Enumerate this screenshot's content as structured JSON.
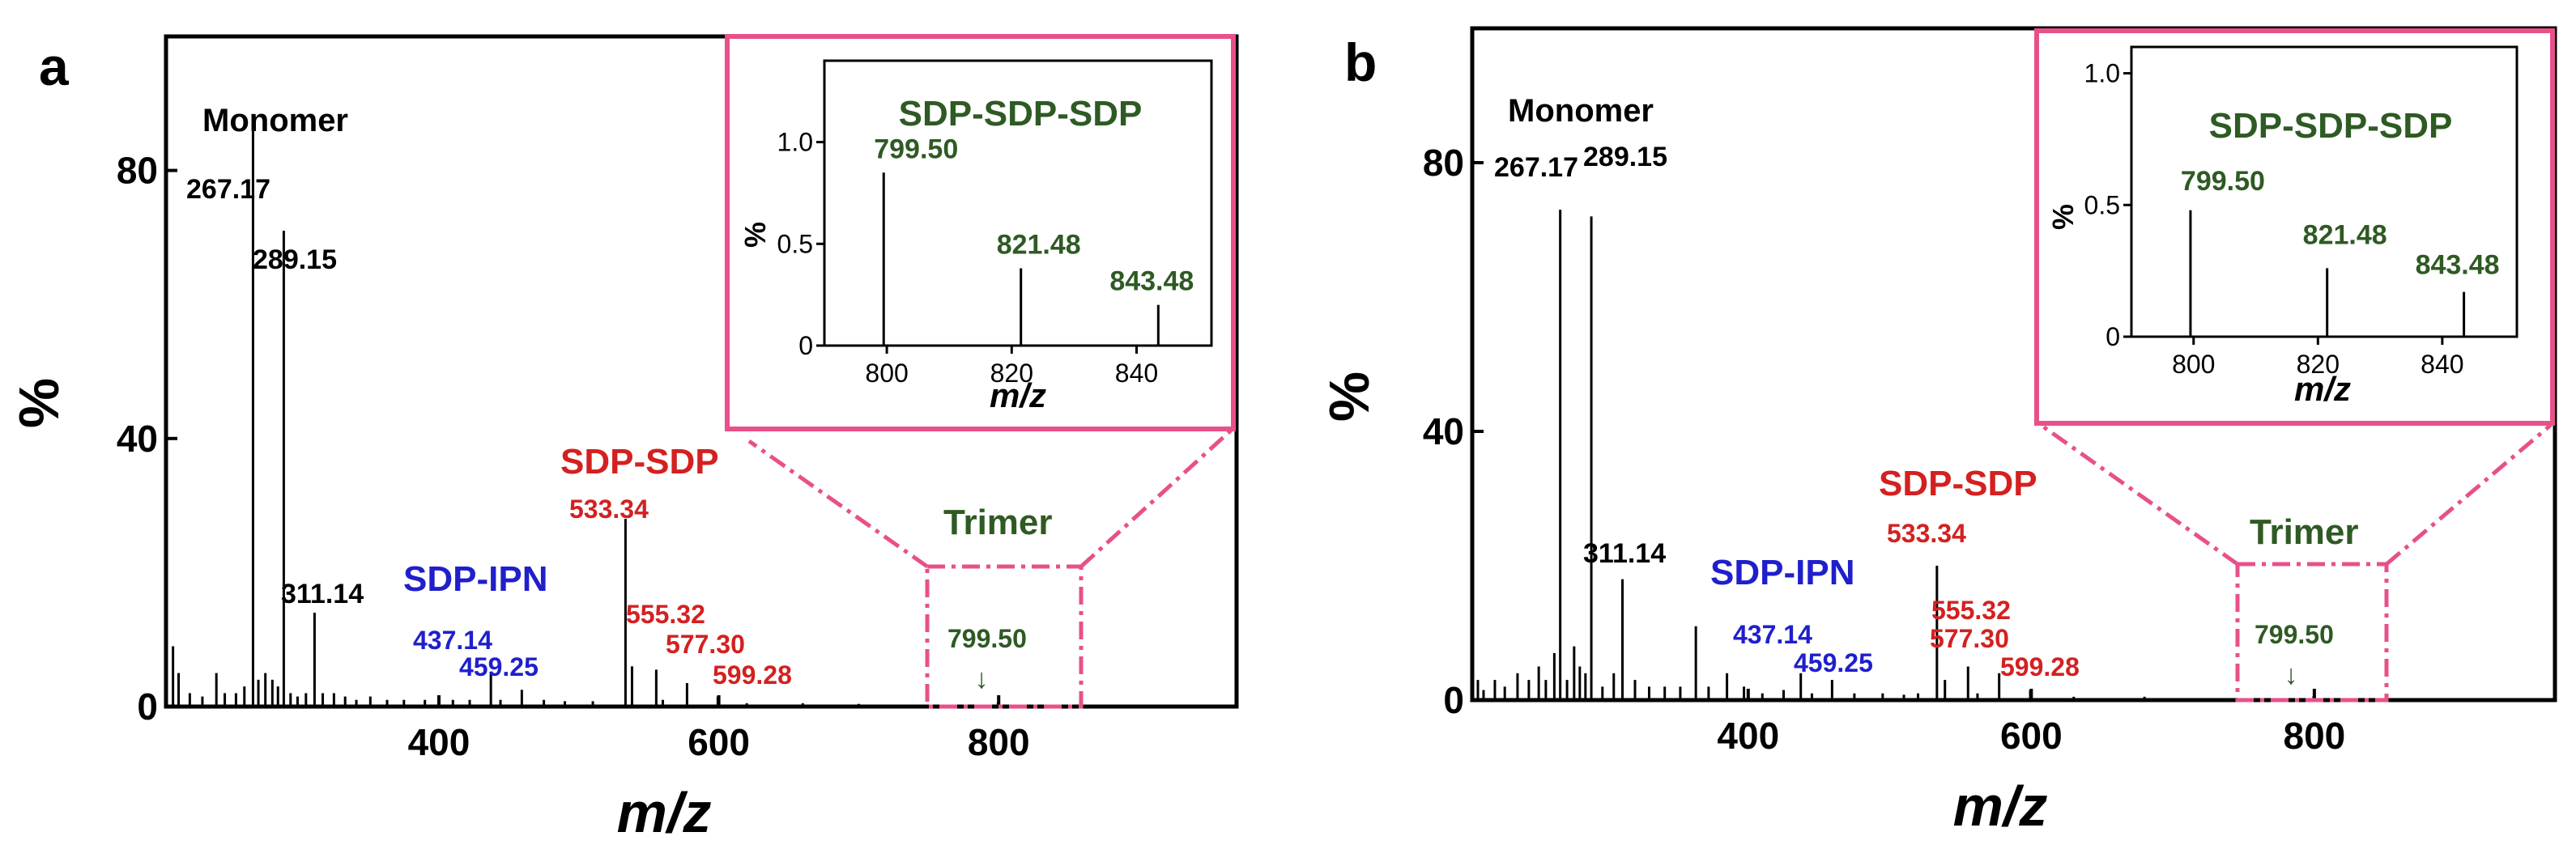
{
  "colors": {
    "black": "#000000",
    "blue": "#1f1fcc",
    "red": "#d42020",
    "green": "#2e5a23",
    "pink": "#e8508a"
  },
  "chart_data": [
    {
      "panel": "a",
      "type": "bar",
      "xlabel": "m/z",
      "ylabel": "%",
      "xlim": [
        205,
        970
      ],
      "ylim": [
        0,
        100
      ],
      "xticks": [
        400,
        600,
        800
      ],
      "yticks": [
        0,
        40,
        80
      ],
      "peaks": [
        {
          "x": 210,
          "y": 9
        },
        {
          "x": 214,
          "y": 5
        },
        {
          "x": 222,
          "y": 2
        },
        {
          "x": 231,
          "y": 1.5
        },
        {
          "x": 241,
          "y": 5
        },
        {
          "x": 247,
          "y": 2
        },
        {
          "x": 255,
          "y": 2
        },
        {
          "x": 261,
          "y": 3
        },
        {
          "x": 267.17,
          "y": 86
        },
        {
          "x": 271,
          "y": 4
        },
        {
          "x": 276,
          "y": 5
        },
        {
          "x": 281,
          "y": 4
        },
        {
          "x": 285,
          "y": 3
        },
        {
          "x": 289.15,
          "y": 71
        },
        {
          "x": 294,
          "y": 2
        },
        {
          "x": 299,
          "y": 1.5
        },
        {
          "x": 305,
          "y": 2
        },
        {
          "x": 311.14,
          "y": 14
        },
        {
          "x": 317,
          "y": 2
        },
        {
          "x": 325,
          "y": 2
        },
        {
          "x": 333,
          "y": 1.5
        },
        {
          "x": 341,
          "y": 1
        },
        {
          "x": 351,
          "y": 1.5
        },
        {
          "x": 363,
          "y": 1
        },
        {
          "x": 375,
          "y": 1
        },
        {
          "x": 390,
          "y": 1
        },
        {
          "x": 410,
          "y": 1
        },
        {
          "x": 422,
          "y": 1
        },
        {
          "x": 437.14,
          "y": 5
        },
        {
          "x": 444,
          "y": 1
        },
        {
          "x": 459.25,
          "y": 2.5
        },
        {
          "x": 475,
          "y": 1
        },
        {
          "x": 490,
          "y": 0.8
        },
        {
          "x": 510,
          "y": 0.8
        },
        {
          "x": 533.34,
          "y": 28
        },
        {
          "x": 538,
          "y": 6
        },
        {
          "x": 555.32,
          "y": 5.5
        },
        {
          "x": 560,
          "y": 1
        },
        {
          "x": 577.3,
          "y": 3.5
        },
        {
          "x": 599.28,
          "y": 1.5
        },
        {
          "x": 620,
          "y": 0.5
        },
        {
          "x": 660,
          "y": 0.5
        },
        {
          "x": 700,
          "y": 0.4
        },
        {
          "x": 799.5,
          "y": 0.6
        }
      ],
      "inset": {
        "title": "SDP-SDP-SDP",
        "xlabel": "m/z",
        "ylabel": "%",
        "xlim": [
          790,
          852
        ],
        "ylim": [
          0,
          1.4
        ],
        "xticks": [
          800,
          820,
          840
        ],
        "yticks": [
          "0",
          "0.5",
          "1.0"
        ],
        "peaks": [
          {
            "x": 799.5,
            "y": 0.85,
            "label": "799.50"
          },
          {
            "x": 821.48,
            "y": 0.38,
            "label": "821.48"
          },
          {
            "x": 843.48,
            "y": 0.2,
            "label": "843.48"
          }
        ]
      }
    },
    {
      "panel": "b",
      "type": "bar",
      "xlabel": "m/z",
      "ylabel": "%",
      "xlim": [
        205,
        970
      ],
      "ylim": [
        0,
        100
      ],
      "xticks": [
        400,
        600,
        800
      ],
      "yticks": [
        0,
        40,
        80
      ],
      "peaks": [
        {
          "x": 209,
          "y": 3
        },
        {
          "x": 213,
          "y": 1.5
        },
        {
          "x": 221,
          "y": 3
        },
        {
          "x": 228,
          "y": 2
        },
        {
          "x": 237,
          "y": 4
        },
        {
          "x": 245,
          "y": 3
        },
        {
          "x": 252,
          "y": 5
        },
        {
          "x": 257,
          "y": 3
        },
        {
          "x": 263,
          "y": 7
        },
        {
          "x": 267.17,
          "y": 73
        },
        {
          "x": 272,
          "y": 3
        },
        {
          "x": 277,
          "y": 8
        },
        {
          "x": 281,
          "y": 5
        },
        {
          "x": 285,
          "y": 4
        },
        {
          "x": 289.15,
          "y": 72
        },
        {
          "x": 297,
          "y": 2
        },
        {
          "x": 305,
          "y": 4
        },
        {
          "x": 311.14,
          "y": 18
        },
        {
          "x": 320,
          "y": 3
        },
        {
          "x": 330,
          "y": 2
        },
        {
          "x": 341,
          "y": 2
        },
        {
          "x": 352,
          "y": 2
        },
        {
          "x": 363,
          "y": 11
        },
        {
          "x": 372,
          "y": 2
        },
        {
          "x": 385,
          "y": 4
        },
        {
          "x": 397,
          "y": 2
        },
        {
          "x": 410,
          "y": 1
        },
        {
          "x": 425,
          "y": 1.5
        },
        {
          "x": 437.14,
          "y": 4
        },
        {
          "x": 445,
          "y": 1
        },
        {
          "x": 459.25,
          "y": 3
        },
        {
          "x": 475,
          "y": 1
        },
        {
          "x": 495,
          "y": 1
        },
        {
          "x": 510,
          "y": 0.8
        },
        {
          "x": 520,
          "y": 1
        },
        {
          "x": 533.34,
          "y": 20
        },
        {
          "x": 539,
          "y": 3
        },
        {
          "x": 555.32,
          "y": 5
        },
        {
          "x": 562,
          "y": 1
        },
        {
          "x": 577.3,
          "y": 4
        },
        {
          "x": 599.28,
          "y": 1.5
        },
        {
          "x": 630,
          "y": 0.5
        },
        {
          "x": 680,
          "y": 0.5
        },
        {
          "x": 799.5,
          "y": 0.6
        }
      ],
      "inset": {
        "title": "SDP-SDP-SDP",
        "xlabel": "m/z",
        "ylabel": "%",
        "xlim": [
          790,
          852
        ],
        "ylim": [
          0,
          1.1
        ],
        "xticks": [
          800,
          820,
          840
        ],
        "yticks": [
          "0",
          "0.5",
          "1.0"
        ],
        "peaks": [
          {
            "x": 799.5,
            "y": 0.48,
            "label": "799.50"
          },
          {
            "x": 821.48,
            "y": 0.26,
            "label": "821.48"
          },
          {
            "x": 843.48,
            "y": 0.17,
            "label": "843.48"
          }
        ]
      }
    }
  ],
  "annotations": {
    "panel_labels": [
      "a",
      "b"
    ],
    "monomer": "Monomer",
    "sdp_ipn": "SDP-IPN",
    "sdp_sdp": "SDP-SDP",
    "trimer": "Trimer",
    "arrow_glyph": "↓",
    "peak_labels": {
      "p267": "267.17",
      "p289": "289.15",
      "p311": "311.14",
      "p437": "437.14",
      "p459": "459.25",
      "p533": "533.34",
      "p555": "555.32",
      "p577": "577.30",
      "p599": "599.28",
      "p799": "799.50"
    }
  }
}
